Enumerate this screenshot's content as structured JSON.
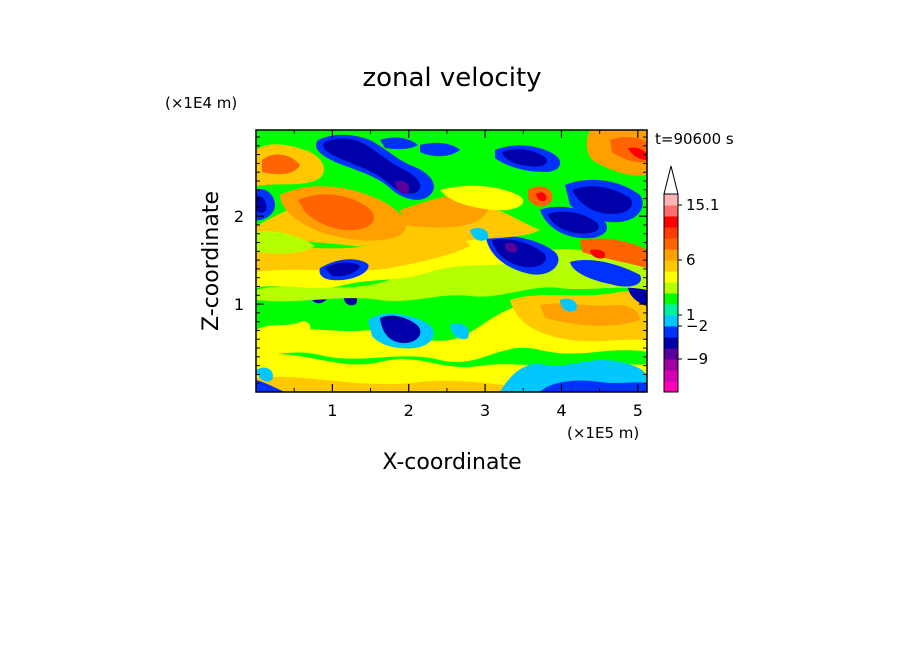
{
  "chart_data": {
    "type": "heatmap",
    "title": "zonal velocity",
    "xlabel": "X-coordinate",
    "ylabel": "Z-coordinate",
    "x_unit": "(×1E5 m)",
    "y_unit": "(×1E4 m)",
    "time_label": "t=90600 s",
    "xlim": [
      0,
      5.12
    ],
    "ylim": [
      0,
      2.98
    ],
    "x_ticks": [
      "1",
      "2",
      "3",
      "4",
      "5"
    ],
    "y_ticks": [
      "1",
      "2"
    ],
    "colorbar": {
      "labels": [
        "15.1",
        "6",
        "1",
        "−2",
        "−9"
      ],
      "colors": [
        "#ff00b4",
        "#d200b4",
        "#a000a0",
        "#5a009b",
        "#0000aa",
        "#0032ff",
        "#00c8ff",
        "#00f0a0",
        "#00ff00",
        "#b4ff00",
        "#ffff00",
        "#ffc800",
        "#ffa000",
        "#ff6400",
        "#ff3c00",
        "#ff0000",
        "#ff6e6e",
        "#ffb4b4"
      ]
    }
  }
}
